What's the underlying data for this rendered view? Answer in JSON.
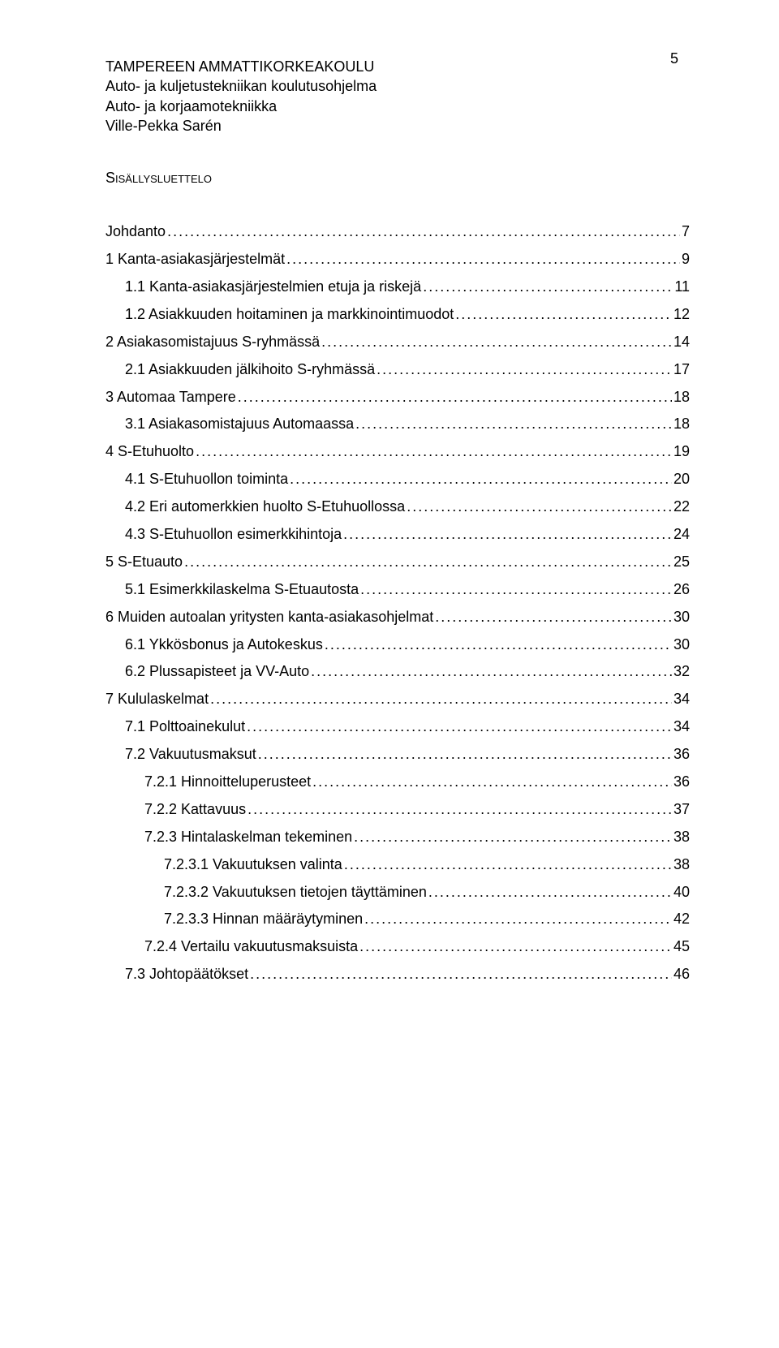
{
  "page_number": "5",
  "header": {
    "line1": "TAMPEREEN AMMATTIKORKEAKOULU",
    "line2": "Auto- ja kuljetustekniikan koulutusohjelma",
    "line3": "Auto- ja korjaamotekniikka",
    "line4": "Ville-Pekka Sarén"
  },
  "toc_title": "Sisällysluettelo",
  "toc": [
    {
      "label": "Johdanto",
      "page": "7",
      "indent": 0
    },
    {
      "label": "1 Kanta-asiakasjärjestelmät",
      "page": "9",
      "indent": 0
    },
    {
      "label": "1.1 Kanta-asiakasjärjestelmien etuja ja riskejä",
      "page": "11",
      "indent": 1
    },
    {
      "label": "1.2 Asiakkuuden hoitaminen ja markkinointimuodot",
      "page": "12",
      "indent": 1
    },
    {
      "label": "2 Asiakasomistajuus S-ryhmässä",
      "page": "14",
      "indent": 0
    },
    {
      "label": "2.1 Asiakkuuden jälkihoito S-ryhmässä",
      "page": "17",
      "indent": 1
    },
    {
      "label": "3 Automaa Tampere",
      "page": "18",
      "indent": 0
    },
    {
      "label": "3.1 Asiakasomistajuus Automaassa",
      "page": "18",
      "indent": 1
    },
    {
      "label": "4 S-Etuhuolto",
      "page": "19",
      "indent": 0
    },
    {
      "label": "4.1 S-Etuhuollon toiminta",
      "page": "20",
      "indent": 1
    },
    {
      "label": "4.2 Eri automerkkien huolto S-Etuhuollossa",
      "page": "22",
      "indent": 1
    },
    {
      "label": "4.3 S-Etuhuollon esimerkkihintoja",
      "page": "24",
      "indent": 1
    },
    {
      "label": "5 S-Etuauto",
      "page": "25",
      "indent": 0
    },
    {
      "label": "5.1 Esimerkkilaskelma S-Etuautosta",
      "page": "26",
      "indent": 1
    },
    {
      "label": "6 Muiden autoalan yritysten kanta-asiakasohjelmat",
      "page": "30",
      "indent": 0
    },
    {
      "label": "6.1 Ykkösbonus ja Autokeskus",
      "page": "30",
      "indent": 1
    },
    {
      "label": "6.2 Plussapisteet ja VV-Auto",
      "page": "32",
      "indent": 1
    },
    {
      "label": "7 Kululaskelmat",
      "page": "34",
      "indent": 0
    },
    {
      "label": "7.1 Polttoainekulut",
      "page": "34",
      "indent": 1
    },
    {
      "label": "7.2 Vakuutusmaksut",
      "page": "36",
      "indent": 1
    },
    {
      "label": "7.2.1 Hinnoitteluperusteet",
      "page": "36",
      "indent": 2
    },
    {
      "label": "7.2.2 Kattavuus",
      "page": "37",
      "indent": 2
    },
    {
      "label": "7.2.3 Hintalaskelman tekeminen",
      "page": "38",
      "indent": 2
    },
    {
      "label": "7.2.3.1 Vakuutuksen valinta",
      "page": "38",
      "indent": 3
    },
    {
      "label": "7.2.3.2 Vakuutuksen tietojen täyttäminen",
      "page": "40",
      "indent": 3
    },
    {
      "label": "7.2.3.3 Hinnan määräytyminen",
      "page": "42",
      "indent": 3
    },
    {
      "label": "7.2.4 Vertailu vakuutusmaksuista",
      "page": "45",
      "indent": 2
    },
    {
      "label": "7.3 Johtopäätökset",
      "page": "46",
      "indent": 1
    }
  ]
}
